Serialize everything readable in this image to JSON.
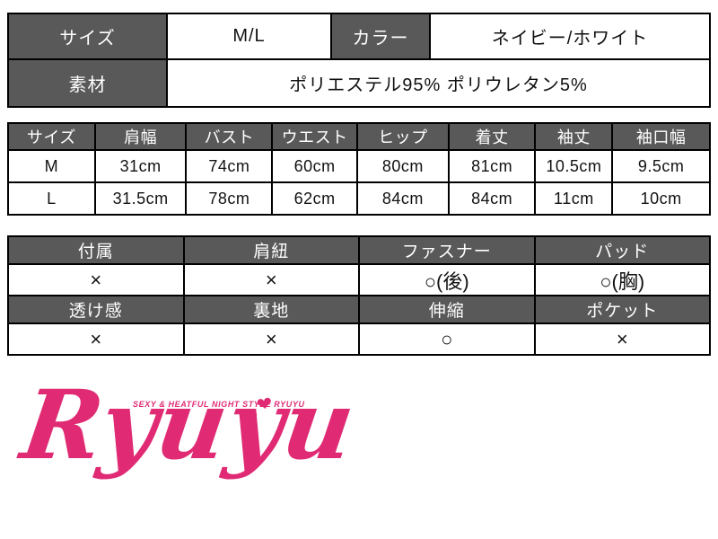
{
  "colors": {
    "header_bg": "#595959",
    "header_text": "#ffffff",
    "border": "#000000",
    "cell_text": "#111111",
    "logo_pink": "#e02b74",
    "background": "#ffffff"
  },
  "spec_table": {
    "size_label": "サイズ",
    "size_value": "M/L",
    "color_label": "カラー",
    "color_value": "ネイビー/ホワイト",
    "material_label": "素材",
    "material_value": "ポリエステル95% ポリウレタン5%"
  },
  "size_chart": {
    "headers": [
      "サイズ",
      "肩幅",
      "バスト",
      "ウエスト",
      "ヒップ",
      "着丈",
      "袖丈",
      "袖口幅"
    ],
    "rows": [
      {
        "size": "M",
        "values": [
          "31cm",
          "74cm",
          "60cm",
          "80cm",
          "81cm",
          "10.5cm",
          "9.5cm"
        ]
      },
      {
        "size": "L",
        "values": [
          "31.5cm",
          "78cm",
          "62cm",
          "84cm",
          "84cm",
          "11cm",
          "10cm"
        ]
      }
    ]
  },
  "features": {
    "row1": {
      "headers": [
        "付属",
        "肩紐",
        "ファスナー",
        "パッド"
      ],
      "values": [
        "×",
        "×",
        "○(後)",
        "○(胸)"
      ]
    },
    "row2": {
      "headers": [
        "透け感",
        "裏地",
        "伸縮",
        "ポケット"
      ],
      "values": [
        "×",
        "×",
        "○",
        "×"
      ]
    }
  },
  "logo": {
    "brand_text": "Ryuyu",
    "tagline": "SEXY & HEATFUL NIGHT STYLE RYUYU",
    "heart": "❤"
  }
}
